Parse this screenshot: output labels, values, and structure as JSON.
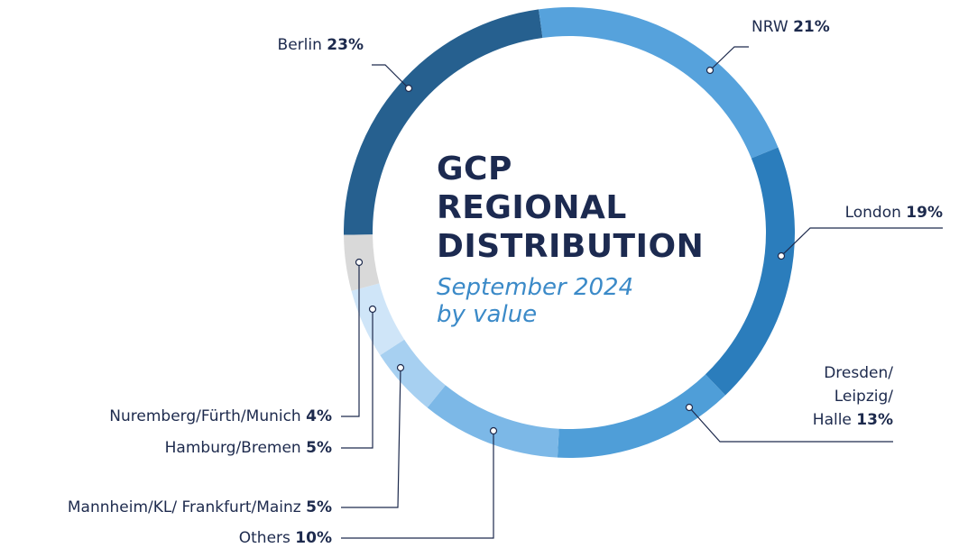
{
  "chart_data": {
    "type": "donut",
    "title": "GCP\nREGIONAL\nDISTRIBUTION",
    "subtitle": "September 2024\nby value",
    "categories": [
      "Berlin",
      "NRW",
      "London",
      "Dresden/\nLeipzig/\nHalle",
      "Others",
      "Mannheim/KL/ Frankfurt/Mainz",
      "Hamburg/Bremen",
      "Nuremberg/Fürth/Munich"
    ],
    "values": [
      23,
      21,
      19,
      13,
      10,
      5,
      5,
      4
    ],
    "value_labels": [
      "23%",
      "21%",
      "19%",
      "13%",
      "10%",
      "5%",
      "5%",
      "4%"
    ],
    "colors": [
      "#26608f",
      "#56a2dc",
      "#2b7dbc",
      "#4f9ed8",
      "#7cb8e7",
      "#a7d0f1",
      "#cfe5f8",
      "#d9d9d9"
    ]
  }
}
